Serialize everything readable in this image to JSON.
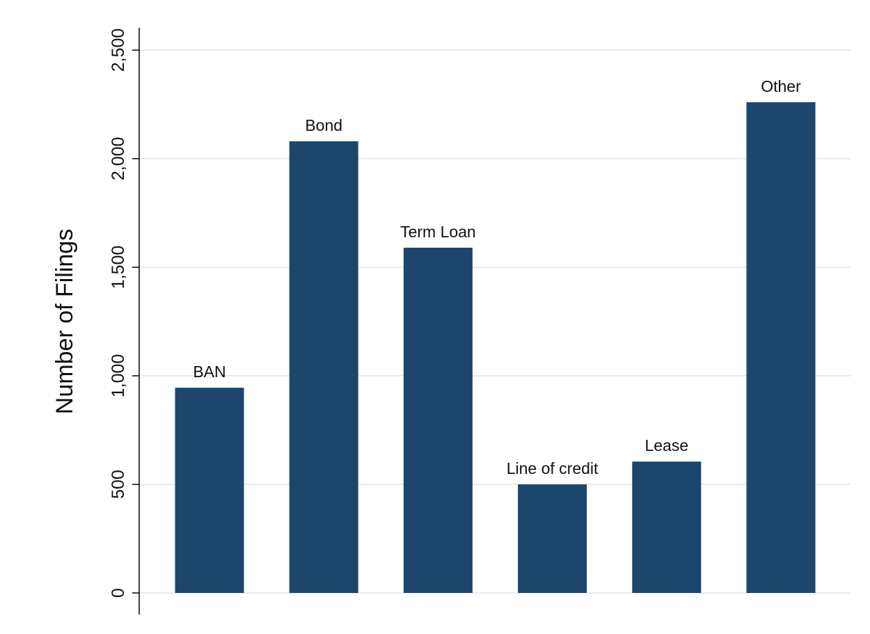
{
  "chart_data": {
    "type": "bar",
    "title": "",
    "xlabel": "",
    "ylabel": "Number of Filings",
    "categories": [
      "BAN",
      "Bond",
      "Term Loan",
      "Line of credit",
      "Lease",
      "Other"
    ],
    "values": [
      945,
      2080,
      1590,
      500,
      605,
      2260
    ],
    "ylim": [
      0,
      2500
    ],
    "yticks": [
      0,
      500,
      1000,
      1500,
      2000,
      2500
    ],
    "ytick_labels": [
      "0",
      "500",
      "1,000",
      "1,500",
      "2,000",
      "2,500"
    ],
    "bar_labels_on_top": true,
    "grid": true,
    "legend": "none",
    "colors": {
      "bar": "#1d466d",
      "grid": "#e3e3e3",
      "axis": "#111111"
    }
  }
}
